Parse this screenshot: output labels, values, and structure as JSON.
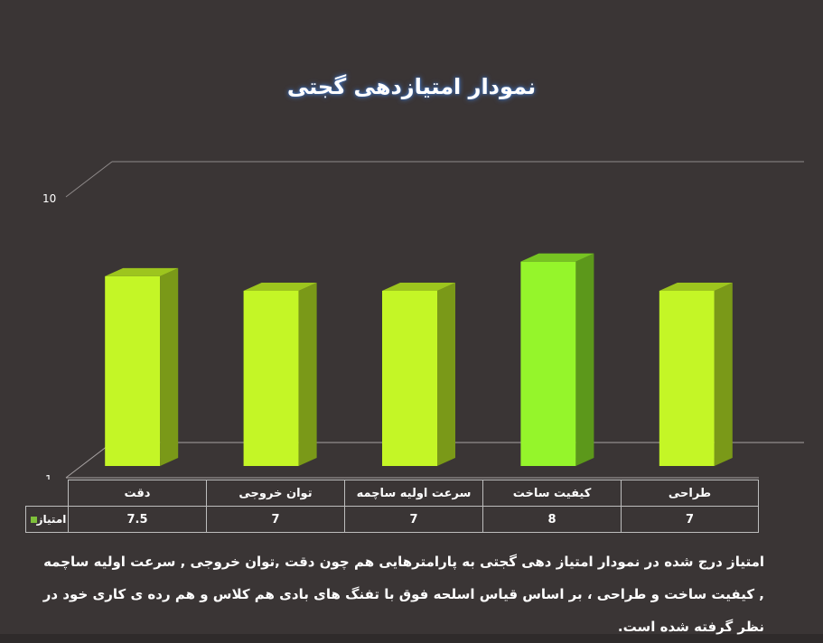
{
  "colors": {
    "background": "#3a3535",
    "bar_default": "#c4f626",
    "bar_highlight": "#95f52b",
    "legend_swatch": "#7ec03a",
    "title_glow": "#4a7fd0"
  },
  "chart_data": {
    "type": "bar",
    "title": "نمودار امتیازدهی گجتی",
    "categories": [
      "دقت",
      "توان خروجی",
      "سرعت اولیه ساچمه",
      "کیفیت ساخت",
      "طراحی"
    ],
    "series": [
      {
        "name": "امتیاز",
        "values": [
          7.5,
          7,
          7,
          8,
          7
        ]
      }
    ],
    "highlight_index": 3,
    "ylim": [
      1,
      10
    ],
    "y_ticks": [
      "10",
      "1"
    ],
    "grid": true,
    "style": "3d",
    "legend": "data-table"
  },
  "table": {
    "series_label": "امتیاز",
    "values_display": [
      "7.5",
      "7",
      "7",
      "8",
      "7"
    ]
  },
  "caption": "امتیاز درج شده در نمودار امتیاز دهی گجتی  به پارامترهایی هم چون دقت ,توان خروجی , سرعت اولیه ساچمه , کیفیت ساخت و طراحی ، بر اساس قیاس اسلحه فوق با تفنگ های بادی هم کلاس و هم رده ی کاری خود در نظر گرفته شده است."
}
